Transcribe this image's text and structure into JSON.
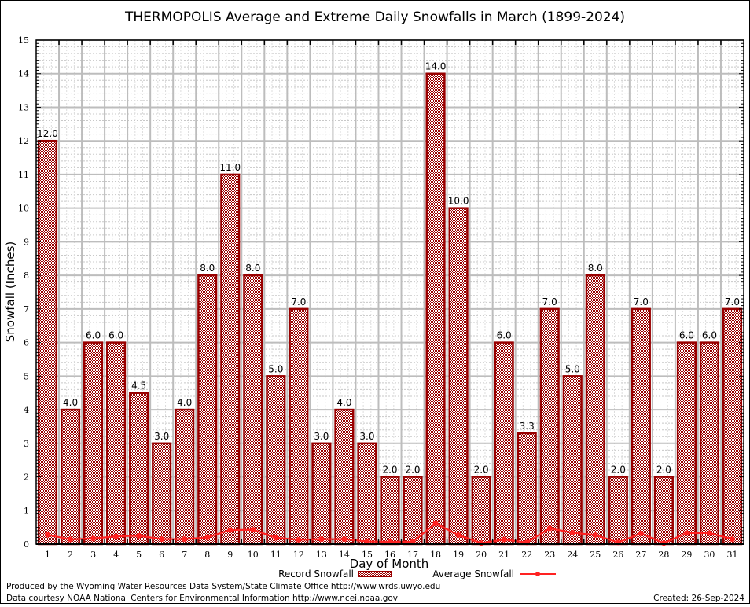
{
  "chart_data": {
    "type": "bar",
    "title": "THERMOPOLIS Average and Extreme Daily Snowfalls in March (1899-2024)",
    "xlabel": "Day of Month",
    "ylabel": "Snowfall (Inches)",
    "ylim": [
      0,
      15
    ],
    "yticks": [
      0,
      1,
      2,
      3,
      4,
      5,
      6,
      7,
      8,
      9,
      10,
      11,
      12,
      13,
      14,
      15
    ],
    "grid": true,
    "categories": [
      "1",
      "2",
      "3",
      "4",
      "5",
      "6",
      "7",
      "8",
      "9",
      "10",
      "11",
      "12",
      "13",
      "14",
      "15",
      "16",
      "17",
      "18",
      "19",
      "20",
      "21",
      "22",
      "23",
      "24",
      "25",
      "26",
      "27",
      "28",
      "29",
      "30",
      "31"
    ],
    "series": [
      {
        "name": "Record Snowfall",
        "type": "bar",
        "color": "#990000",
        "values": [
          12.0,
          4.0,
          6.0,
          6.0,
          4.5,
          3.0,
          4.0,
          8.0,
          11.0,
          8.0,
          5.0,
          7.0,
          3.0,
          4.0,
          3.0,
          2.0,
          2.0,
          14.0,
          10.0,
          2.0,
          6.0,
          3.3,
          7.0,
          5.0,
          8.0,
          2.0,
          7.0,
          2.0,
          6.0,
          6.0,
          7.0
        ],
        "labels": [
          "12.0",
          "4.0",
          "6.0",
          "6.0",
          "4.5",
          "3.0",
          "4.0",
          "8.0",
          "11.0",
          "8.0",
          "5.0",
          "7.0",
          "3.0",
          "4.0",
          "3.0",
          "2.0",
          "2.0",
          "14.0",
          "10.0",
          "2.0",
          "6.0",
          "3.3",
          "7.0",
          "5.0",
          "8.0",
          "2.0",
          "7.0",
          "2.0",
          "6.0",
          "6.0",
          "7.0"
        ]
      },
      {
        "name": "Average Snowfall",
        "type": "line",
        "color": "#ff2222",
        "values": [
          0.28,
          0.14,
          0.17,
          0.23,
          0.25,
          0.15,
          0.15,
          0.2,
          0.42,
          0.43,
          0.19,
          0.13,
          0.15,
          0.15,
          0.08,
          0.07,
          0.07,
          0.62,
          0.27,
          0.03,
          0.14,
          0.05,
          0.47,
          0.34,
          0.27,
          0.05,
          0.32,
          0.03,
          0.33,
          0.33,
          0.15
        ]
      }
    ],
    "legend": {
      "placement": "bottom-center"
    }
  },
  "footer": {
    "line1": "Produced by the Wyoming Water Resources Data System/State Climate Office http://www.wrds.uwyo.edu",
    "line2": "Data courtesy NOAA National Centers for Environmental Information http://www.ncei.noaa.gov",
    "created": "Created: 26-Sep-2024"
  }
}
